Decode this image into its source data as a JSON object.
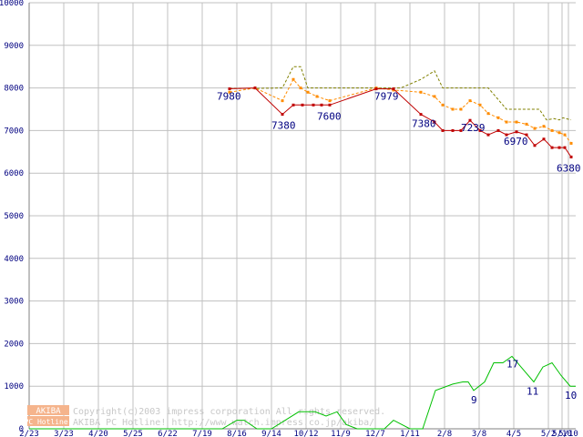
{
  "chart_data": {
    "type": "line",
    "ylim": [
      0,
      10000
    ],
    "yticks": [
      0,
      1000,
      2000,
      3000,
      4000,
      5000,
      6000,
      7000,
      8000,
      9000,
      10000
    ],
    "ytick_labels": [
      "0",
      "1000",
      "2000",
      "3000",
      "4000",
      "5000",
      "6000",
      "7000",
      "8000",
      "9000",
      "10000"
    ],
    "xlim": [
      0,
      600
    ],
    "xticks": [
      {
        "x": 0,
        "label": "2/23"
      },
      {
        "x": 38,
        "label": "3/23"
      },
      {
        "x": 76,
        "label": "4/20"
      },
      {
        "x": 114,
        "label": "5/25"
      },
      {
        "x": 152,
        "label": "6/22"
      },
      {
        "x": 190,
        "label": "7/19"
      },
      {
        "x": 228,
        "label": "8/16"
      },
      {
        "x": 266,
        "label": "9/14"
      },
      {
        "x": 304,
        "label": "10/12"
      },
      {
        "x": 342,
        "label": "11/9"
      },
      {
        "x": 380,
        "label": "12/7"
      },
      {
        "x": 418,
        "label": "1/11"
      },
      {
        "x": 456,
        "label": "2/8"
      },
      {
        "x": 494,
        "label": "3/8"
      },
      {
        "x": 532,
        "label": "4/5"
      },
      {
        "x": 570,
        "label": "5/2"
      },
      {
        "x": 585,
        "label": "5/10"
      },
      {
        "x": 592,
        "label": "5/10"
      }
    ],
    "grid": true,
    "series": [
      {
        "id": "top",
        "color": "#808000",
        "dash": "3,2",
        "markers": false,
        "points": [
          [
            220,
            7990
          ],
          [
            248,
            7990
          ],
          [
            278,
            8000
          ],
          [
            290,
            8500
          ],
          [
            298,
            8500
          ],
          [
            306,
            8000
          ],
          [
            336,
            8000
          ],
          [
            381,
            8000
          ],
          [
            408,
            8000
          ],
          [
            430,
            8200
          ],
          [
            445,
            8400
          ],
          [
            454,
            8000
          ],
          [
            504,
            8000
          ],
          [
            524,
            7500
          ],
          [
            560,
            7500
          ],
          [
            568,
            7250
          ],
          [
            576,
            7280
          ],
          [
            582,
            7250
          ],
          [
            586,
            7300
          ],
          [
            595,
            7250
          ]
        ]
      },
      {
        "id": "avg",
        "color": "#ff8c00",
        "dash": "3,2",
        "markers": true,
        "points": [
          [
            220,
            7900
          ],
          [
            248,
            8000
          ],
          [
            278,
            7700
          ],
          [
            290,
            8200
          ],
          [
            298,
            8000
          ],
          [
            306,
            7900
          ],
          [
            316,
            7800
          ],
          [
            330,
            7700
          ],
          [
            381,
            8000
          ],
          [
            400,
            7950
          ],
          [
            430,
            7900
          ],
          [
            445,
            7800
          ],
          [
            454,
            7600
          ],
          [
            465,
            7500
          ],
          [
            474,
            7500
          ],
          [
            484,
            7700
          ],
          [
            495,
            7600
          ],
          [
            504,
            7400
          ],
          [
            515,
            7300
          ],
          [
            524,
            7200
          ],
          [
            535,
            7200
          ],
          [
            546,
            7150
          ],
          [
            555,
            7050
          ],
          [
            565,
            7100
          ],
          [
            574,
            7000
          ],
          [
            582,
            6950
          ],
          [
            588,
            6900
          ],
          [
            595,
            6700
          ]
        ]
      },
      {
        "id": "min",
        "color": "#c00000",
        "dash": "",
        "markers": true,
        "points": [
          [
            220,
            7980
          ],
          [
            248,
            8000
          ],
          [
            278,
            7380
          ],
          [
            290,
            7600
          ],
          [
            300,
            7600
          ],
          [
            312,
            7600
          ],
          [
            321,
            7600
          ],
          [
            330,
            7600
          ],
          [
            381,
            7979
          ],
          [
            400,
            7979
          ],
          [
            430,
            7380
          ],
          [
            445,
            7200
          ],
          [
            454,
            7000
          ],
          [
            465,
            7000
          ],
          [
            474,
            7000
          ],
          [
            484,
            7239
          ],
          [
            495,
            7000
          ],
          [
            504,
            6900
          ],
          [
            515,
            7000
          ],
          [
            524,
            6900
          ],
          [
            535,
            6970
          ],
          [
            546,
            6900
          ],
          [
            555,
            6650
          ],
          [
            565,
            6800
          ],
          [
            574,
            6600
          ],
          [
            582,
            6600
          ],
          [
            588,
            6600
          ],
          [
            595,
            6380
          ]
        ]
      },
      {
        "id": "count",
        "color": "#00c000",
        "dash": "",
        "markers": false,
        "points": [
          [
            0,
            0
          ],
          [
            212,
            0
          ],
          [
            228,
            200
          ],
          [
            236,
            200
          ],
          [
            250,
            0
          ],
          [
            266,
            0
          ],
          [
            296,
            400
          ],
          [
            314,
            400
          ],
          [
            326,
            300
          ],
          [
            338,
            400
          ],
          [
            348,
            100
          ],
          [
            360,
            0
          ],
          [
            372,
            0
          ],
          [
            390,
            0
          ],
          [
            400,
            200
          ],
          [
            418,
            0
          ],
          [
            432,
            0
          ],
          [
            446,
            900
          ],
          [
            465,
            1050
          ],
          [
            476,
            1100
          ],
          [
            482,
            1100
          ],
          [
            488,
            900
          ],
          [
            500,
            1100
          ],
          [
            510,
            1550
          ],
          [
            520,
            1550
          ],
          [
            530,
            1700
          ],
          [
            544,
            1350
          ],
          [
            554,
            1100
          ],
          [
            564,
            1450
          ],
          [
            574,
            1550
          ],
          [
            584,
            1250
          ],
          [
            594,
            1000
          ],
          [
            600,
            1000
          ]
        ]
      }
    ],
    "data_labels": [
      {
        "text": "7980",
        "x": 220,
        "y": 7980,
        "dx": -14,
        "dy": 12
      },
      {
        "text": "7380",
        "x": 278,
        "y": 7380,
        "dx": -12,
        "dy": 16
      },
      {
        "text": "7600",
        "x": 330,
        "y": 7600,
        "dx": -14,
        "dy": 16
      },
      {
        "text": "7979",
        "x": 381,
        "y": 7979,
        "dx": -2,
        "dy": 12
      },
      {
        "text": "7380",
        "x": 430,
        "y": 7380,
        "dx": -10,
        "dy": 14
      },
      {
        "text": "7239",
        "x": 484,
        "y": 7239,
        "dx": -10,
        "dy": 12
      },
      {
        "text": "6970",
        "x": 535,
        "y": 6970,
        "dx": -14,
        "dy": 14
      },
      {
        "text": "6380",
        "x": 595,
        "y": 6380,
        "dx": -16,
        "dy": 16
      },
      {
        "text": "9",
        "x": 488,
        "y": 900,
        "dx": -3,
        "dy": 14
      },
      {
        "text": "17",
        "x": 530,
        "y": 1700,
        "dx": -6,
        "dy": 12
      },
      {
        "text": "11",
        "x": 554,
        "y": 1100,
        "dx": -8,
        "dy": 14
      },
      {
        "text": "10",
        "x": 594,
        "y": 1000,
        "dx": -6,
        "dy": 14
      }
    ]
  },
  "watermark": {
    "logo_top": "AKIBA",
    "logo_bottom": "PC Hotline!",
    "line1": "Copyright(c)2003 impress corporation All rights reserved.",
    "line2": "AKIBA PC Hotline! http://www.watch.impress.co.jp/akiba/"
  }
}
